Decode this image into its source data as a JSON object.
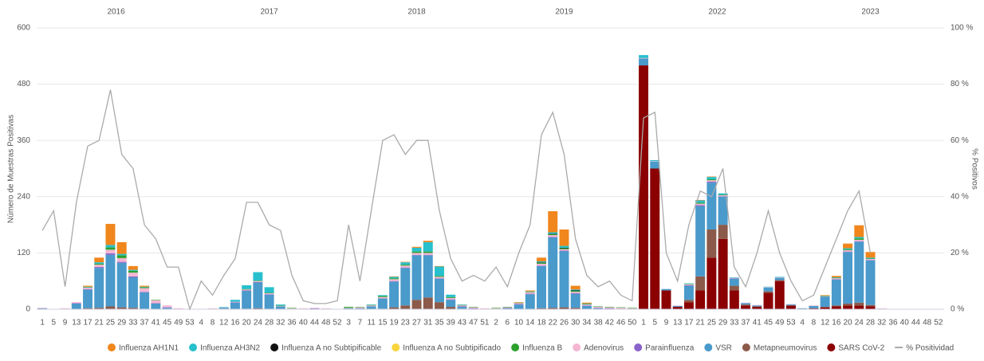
{
  "chart_data": {
    "type": "bar",
    "stacked": true,
    "ylabel": "Número de Muestras Positivas",
    "y2label": "% Positivos",
    "ylim": [
      0,
      600
    ],
    "yticks": [
      0,
      120,
      240,
      360,
      480,
      600
    ],
    "y2lim": [
      0,
      100
    ],
    "y2ticks": [
      {
        "value": 0,
        "label": "0 %"
      },
      {
        "value": 20,
        "label": "20 %"
      },
      {
        "value": 40,
        "label": "40 %"
      },
      {
        "value": 60,
        "label": "60 %"
      },
      {
        "value": 80,
        "label": "80 %"
      },
      {
        "value": 100,
        "label": "100 %"
      }
    ],
    "grid": true,
    "periods": [
      {
        "name": "2016",
        "weeks": [
          "1",
          "5",
          "9",
          "13",
          "17",
          "21",
          "25",
          "29",
          "33",
          "37",
          "41",
          "45",
          "49",
          "53"
        ]
      },
      {
        "name": "2017",
        "weeks": [
          "4",
          "8",
          "12",
          "16",
          "20",
          "24",
          "28",
          "32",
          "36",
          "40",
          "44",
          "48",
          "52"
        ]
      },
      {
        "name": "2018",
        "weeks": [
          "3",
          "7",
          "11",
          "15",
          "19",
          "23",
          "27",
          "31",
          "35",
          "39",
          "43",
          "47",
          "51"
        ]
      },
      {
        "name": "2019",
        "weeks": [
          "2",
          "6",
          "10",
          "14",
          "18",
          "22",
          "26",
          "30",
          "34",
          "38",
          "42",
          "46",
          "50"
        ]
      },
      {
        "name": "2022",
        "weeks": [
          "1",
          "5",
          "9",
          "13",
          "17",
          "21",
          "25",
          "29",
          "33",
          "37",
          "41",
          "45",
          "49",
          "53"
        ]
      },
      {
        "name": "2023",
        "weeks": [
          "4",
          "8",
          "12",
          "16",
          "20",
          "24",
          "28",
          "32",
          "36",
          "40",
          "44",
          "48",
          "52"
        ]
      }
    ],
    "series": [
      {
        "name": "Influenza AH1N1",
        "color": "#f0861c",
        "values": [
          0,
          0,
          0,
          0,
          2,
          10,
          45,
          25,
          8,
          2,
          0,
          0,
          0,
          0,
          0,
          0,
          0,
          0,
          0,
          0,
          0,
          0,
          0,
          0,
          0,
          0,
          0,
          0,
          0,
          0,
          0,
          1,
          1,
          2,
          3,
          1,
          0,
          0,
          0,
          0,
          0,
          0,
          1,
          2,
          8,
          45,
          35,
          8,
          2,
          0,
          0,
          0,
          0,
          0,
          0,
          0,
          0,
          0,
          1,
          1,
          0,
          0,
          0,
          0,
          0,
          0,
          0,
          0,
          0,
          1,
          3,
          10,
          25,
          12,
          0,
          0,
          0,
          0,
          0,
          0
        ]
      },
      {
        "name": "Influenza AH3N2",
        "color": "#27c0cc",
        "values": [
          0,
          0,
          0,
          0,
          1,
          3,
          5,
          3,
          2,
          1,
          0,
          0,
          0,
          0,
          0,
          0,
          1,
          4,
          8,
          18,
          12,
          2,
          0,
          0,
          0,
          0,
          0,
          0,
          0,
          1,
          2,
          3,
          5,
          8,
          20,
          20,
          5,
          1,
          0,
          0,
          0,
          0,
          0,
          1,
          2,
          3,
          4,
          2,
          1,
          0,
          0,
          0,
          0,
          6,
          2,
          0,
          0,
          1,
          5,
          5,
          3,
          1,
          0,
          0,
          1,
          1,
          0,
          0,
          0,
          0,
          1,
          2,
          3,
          2,
          0,
          0,
          0,
          0,
          0,
          0
        ]
      },
      {
        "name": "Influenza A no Subtipificable",
        "color": "#111111",
        "values": [
          0,
          0,
          0,
          0,
          0,
          0,
          0,
          0,
          0,
          0,
          0,
          0,
          0,
          0,
          0,
          0,
          0,
          0,
          0,
          0,
          0,
          0,
          0,
          0,
          0,
          0,
          0,
          0,
          0,
          0,
          0,
          0,
          0,
          0,
          0,
          0,
          0,
          0,
          0,
          0,
          0,
          0,
          0,
          0,
          1,
          1,
          1,
          1,
          0,
          0,
          0,
          0,
          0,
          0,
          0,
          0,
          0,
          0,
          0,
          0,
          0,
          0,
          0,
          0,
          0,
          0,
          0,
          0,
          0,
          0,
          0,
          0,
          0,
          0,
          0,
          0,
          0,
          0,
          0,
          0
        ]
      },
      {
        "name": "Influenza A no Subtipificado",
        "color": "#f9d43b",
        "values": [
          0,
          0,
          0,
          0,
          0,
          0,
          0,
          0,
          0,
          0,
          0,
          0,
          0,
          0,
          0,
          0,
          0,
          0,
          0,
          0,
          0,
          0,
          0,
          0,
          0,
          0,
          0,
          0,
          0,
          0,
          0,
          0,
          0,
          0,
          0,
          0,
          0,
          0,
          0,
          0,
          0,
          0,
          0,
          0,
          0,
          0,
          0,
          0,
          0,
          0,
          0,
          0,
          0,
          0,
          0,
          0,
          0,
          0,
          0,
          0,
          0,
          0,
          0,
          0,
          0,
          0,
          0,
          0,
          0,
          0,
          0,
          0,
          0,
          0,
          0,
          0,
          0,
          0,
          0,
          0
        ]
      },
      {
        "name": "Influenza B",
        "color": "#2ca02c",
        "values": [
          0,
          0,
          0,
          0,
          1,
          2,
          5,
          6,
          4,
          2,
          1,
          0,
          0,
          0,
          0,
          0,
          0,
          0,
          1,
          1,
          1,
          1,
          1,
          0,
          0,
          0,
          0,
          2,
          1,
          1,
          2,
          2,
          2,
          3,
          3,
          2,
          2,
          1,
          1,
          0,
          1,
          1,
          1,
          1,
          2,
          2,
          2,
          2,
          1,
          1,
          1,
          1,
          1,
          0,
          0,
          0,
          0,
          1,
          2,
          2,
          1,
          0,
          0,
          0,
          0,
          0,
          0,
          0,
          0,
          1,
          1,
          2,
          3,
          1,
          0,
          0,
          0,
          0,
          0,
          0
        ]
      },
      {
        "name": "Adenovirus",
        "color": "#f4b6d2",
        "values": [
          1,
          0,
          1,
          2,
          3,
          5,
          8,
          8,
          8,
          8,
          6,
          4,
          2,
          0,
          0,
          1,
          1,
          1,
          2,
          2,
          2,
          1,
          1,
          1,
          1,
          1,
          0,
          1,
          2,
          2,
          3,
          4,
          4,
          4,
          4,
          3,
          3,
          2,
          2,
          1,
          1,
          1,
          2,
          3,
          4,
          4,
          3,
          3,
          2,
          2,
          2,
          2,
          1,
          1,
          1,
          0,
          1,
          2,
          3,
          3,
          2,
          1,
          1,
          1,
          1,
          1,
          1,
          0,
          1,
          1,
          2,
          3,
          3,
          2,
          1,
          0,
          0,
          0,
          0,
          0
        ]
      },
      {
        "name": "Parainfluenza",
        "color": "#8a63c9",
        "values": [
          0,
          0,
          0,
          1,
          1,
          2,
          3,
          2,
          2,
          1,
          1,
          1,
          0,
          0,
          0,
          0,
          0,
          1,
          1,
          1,
          1,
          0,
          0,
          0,
          1,
          1,
          0,
          0,
          0,
          0,
          0,
          1,
          1,
          1,
          1,
          1,
          1,
          1,
          1,
          1,
          0,
          1,
          1,
          1,
          1,
          1,
          1,
          1,
          1,
          1,
          1,
          1,
          1,
          0,
          0,
          0,
          0,
          1,
          2,
          2,
          1,
          1,
          0,
          0,
          0,
          0,
          0,
          0,
          0,
          0,
          1,
          1,
          1,
          1,
          0,
          0,
          0,
          0,
          0,
          0
        ]
      },
      {
        "name": "VSR",
        "color": "#4a9acb",
        "values": [
          2,
          0,
          1,
          12,
          40,
          85,
          110,
          95,
          65,
          35,
          12,
          3,
          0,
          0,
          0,
          1,
          3,
          14,
          38,
          55,
          30,
          6,
          1,
          1,
          1,
          0,
          0,
          2,
          2,
          6,
          22,
          55,
          80,
          95,
          90,
          50,
          15,
          4,
          1,
          0,
          1,
          2,
          10,
          32,
          90,
          150,
          120,
          30,
          6,
          2,
          1,
          0,
          0,
          15,
          15,
          3,
          2,
          30,
          150,
          100,
          60,
          15,
          3,
          2,
          8,
          5,
          2,
          1,
          5,
          22,
          55,
          110,
          130,
          95,
          1,
          0,
          0,
          0,
          0,
          0
        ]
      },
      {
        "name": "Metapneumovirus",
        "color": "#8c5a4a",
        "values": [
          0,
          0,
          0,
          0,
          2,
          3,
          6,
          4,
          3,
          1,
          0,
          0,
          0,
          0,
          0,
          0,
          0,
          0,
          1,
          2,
          1,
          0,
          0,
          0,
          0,
          0,
          0,
          0,
          0,
          0,
          1,
          4,
          8,
          20,
          25,
          15,
          5,
          1,
          0,
          0,
          0,
          0,
          0,
          0,
          2,
          3,
          4,
          3,
          1,
          0,
          0,
          0,
          0,
          0,
          0,
          0,
          0,
          5,
          30,
          60,
          30,
          10,
          2,
          1,
          3,
          2,
          0,
          0,
          0,
          1,
          2,
          4,
          6,
          3,
          0,
          0,
          0,
          0,
          0,
          0
        ]
      },
      {
        "name": "SARS CoV-2",
        "color": "#8b0000",
        "values": [
          0,
          0,
          0,
          0,
          0,
          0,
          0,
          0,
          0,
          0,
          0,
          0,
          0,
          0,
          0,
          0,
          0,
          0,
          0,
          0,
          0,
          0,
          0,
          0,
          0,
          0,
          0,
          0,
          0,
          0,
          0,
          0,
          0,
          0,
          0,
          0,
          0,
          0,
          0,
          0,
          0,
          0,
          0,
          0,
          0,
          0,
          0,
          0,
          0,
          0,
          0,
          0,
          0,
          520,
          300,
          40,
          5,
          15,
          40,
          110,
          150,
          40,
          8,
          5,
          35,
          60,
          8,
          1,
          2,
          4,
          6,
          8,
          8,
          6,
          0,
          0,
          0,
          0,
          0,
          0
        ]
      },
      {
        "name": "% Positividad",
        "color": "#aaaaaa",
        "type": "line",
        "axis": "y2",
        "values": [
          28,
          35,
          8,
          38,
          58,
          60,
          78,
          55,
          50,
          30,
          25,
          15,
          15,
          0,
          10,
          5,
          12,
          18,
          38,
          38,
          30,
          28,
          12,
          3,
          2,
          2,
          3,
          30,
          10,
          35,
          60,
          62,
          55,
          60,
          60,
          35,
          18,
          10,
          12,
          10,
          15,
          8,
          20,
          30,
          62,
          70,
          55,
          25,
          12,
          8,
          10,
          5,
          3,
          68,
          70,
          20,
          10,
          30,
          42,
          40,
          50,
          15,
          8,
          20,
          35,
          20,
          10,
          3,
          5,
          15,
          25,
          35,
          42,
          20,
          null,
          null,
          null,
          null,
          null,
          null
        ]
      }
    ]
  }
}
